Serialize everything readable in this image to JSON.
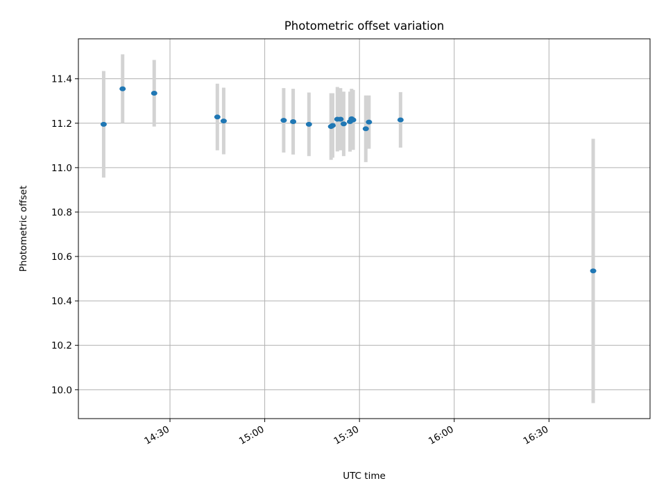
{
  "chart_data": {
    "type": "scatter",
    "title": "Photometric offset variation",
    "xlabel": "UTC time",
    "ylabel": "Photometric offset",
    "x_axis_type": "time",
    "xlim": [
      "14:01",
      "17:02"
    ],
    "ylim": [
      9.87,
      11.58
    ],
    "grid": true,
    "x_ticks": [
      "14:30",
      "15:00",
      "15:30",
      "16:00",
      "16:30"
    ],
    "y_ticks": [
      10.0,
      10.2,
      10.4,
      10.6,
      10.8,
      11.0,
      11.2,
      11.4
    ],
    "y_tick_labels": [
      "10.0",
      "10.2",
      "10.4",
      "10.6",
      "10.8",
      "11.0",
      "11.2",
      "11.4"
    ],
    "marker_color": "#1f77b4",
    "errorbar_color": "#d3d3d3",
    "series": [
      {
        "points": [
          {
            "x": "14:09",
            "y": 11.195,
            "err": 0.24
          },
          {
            "x": "14:15",
            "y": 11.355,
            "err": 0.155
          },
          {
            "x": "14:25",
            "y": 11.335,
            "err": 0.15
          },
          {
            "x": "14:45",
            "y": 11.228,
            "err": 0.15
          },
          {
            "x": "14:47",
            "y": 11.21,
            "err": 0.15
          },
          {
            "x": "15:06",
            "y": 11.213,
            "err": 0.145
          },
          {
            "x": "15:09",
            "y": 11.207,
            "err": 0.148
          },
          {
            "x": "15:14",
            "y": 11.195,
            "err": 0.143
          },
          {
            "x": "15:21",
            "y": 11.185,
            "err": 0.15
          },
          {
            "x": "15:21.5",
            "y": 11.19,
            "err": 0.145
          },
          {
            "x": "15:23",
            "y": 11.218,
            "err": 0.145
          },
          {
            "x": "15:24",
            "y": 11.218,
            "err": 0.14
          },
          {
            "x": "15:25",
            "y": 11.197,
            "err": 0.145
          },
          {
            "x": "15:27",
            "y": 11.207,
            "err": 0.135
          },
          {
            "x": "15:27.5",
            "y": 11.22,
            "err": 0.135
          },
          {
            "x": "15:28",
            "y": 11.215,
            "err": 0.135
          },
          {
            "x": "15:32",
            "y": 11.175,
            "err": 0.15
          },
          {
            "x": "15:33",
            "y": 11.205,
            "err": 0.12
          },
          {
            "x": "15:43",
            "y": 11.215,
            "err": 0.125
          },
          {
            "x": "16:44",
            "y": 10.535,
            "err": 0.595
          }
        ]
      }
    ]
  }
}
